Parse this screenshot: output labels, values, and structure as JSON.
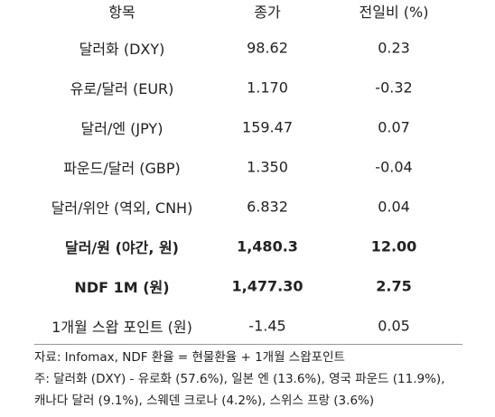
{
  "table": {
    "header": [
      "항목",
      "종가",
      "전일비 (%)"
    ],
    "rows": [
      [
        "달러화 (DXY)",
        "98.62",
        "0.23"
      ],
      [
        "유로/달러 (EUR)",
        "1.170",
        "-0.32"
      ],
      [
        "달러/엔 (JPY)",
        "159.47",
        "0.07"
      ],
      [
        "파운드/달러 (GBP)",
        "1.350",
        "-0.04"
      ],
      [
        "달러/위안 (역외, CNH)",
        "6.832",
        "0.04"
      ],
      [
        "달러/원 (야간, 원)",
        "1,480.3",
        "12.00"
      ],
      [
        "NDF 1M (원)",
        "1,477.30",
        "2.75"
      ],
      [
        "1개월 스왑 포인트 (원)",
        "-1.45",
        "0.05"
      ]
    ],
    "bold_rows": [
      5,
      6
    ]
  },
  "notes": [
    "자료: Infomax, NDF 환율 = 현물환율 + 1개월 스왑포인트",
    "주: 달러화 (DXY) - 유로화 (57.6%), 일본 엔 (13.6%), 영국 파운드 (11.9%),",
    "캐나다 달러 (9.1%), 스웨덴 크로나 (4.2%), 스위스 프랑 (3.6%)"
  ]
}
